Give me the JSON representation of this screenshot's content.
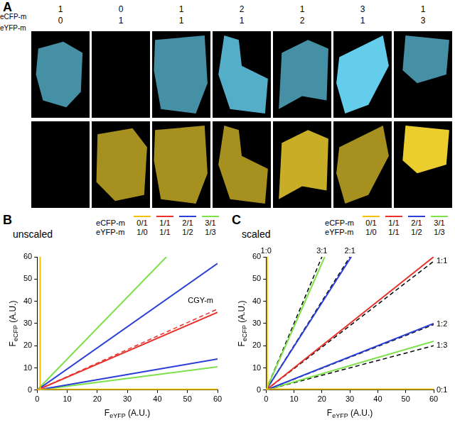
{
  "panel_a": {
    "label": "A",
    "row_labels": [
      "eCFP-m",
      "eYFP-m"
    ],
    "columns": [
      [
        1,
        0
      ],
      [
        0,
        1
      ],
      [
        1,
        1
      ],
      [
        2,
        1
      ],
      [
        1,
        2
      ],
      [
        3,
        1
      ],
      [
        1,
        3
      ]
    ]
  },
  "chart_data": [
    {
      "type": "line",
      "title": "B",
      "subtitle": "unscaled",
      "xlabel": {
        "text": "F",
        "subscript": "eYFP",
        "suffix": " (A.U.)"
      },
      "ylabel": {
        "text": "F",
        "subscript": "eCFP",
        "suffix": " (A.U.)"
      },
      "xlim": [
        0,
        60
      ],
      "ylim": [
        0,
        60
      ],
      "xticks": [
        0,
        10,
        20,
        30,
        40,
        50,
        60
      ],
      "yticks": [
        0,
        10,
        20,
        30,
        40,
        50,
        60
      ],
      "grid": false,
      "legend_table": {
        "row_labels": [
          "eCFP-m",
          "eYFP-m"
        ],
        "columns": [
          {
            "color": "#f2c200",
            "labels": [
              "0/1",
              "1/0"
            ]
          },
          {
            "color": "#e8312b",
            "labels": [
              "1/1",
              "1/1"
            ]
          },
          {
            "color": "#2b3fd6",
            "labels": [
              "2/1",
              "1/2"
            ]
          },
          {
            "color": "#7ee04a",
            "labels": [
              "3/1",
              "1/3"
            ]
          }
        ]
      },
      "series": [
        {
          "color": "#f2c200",
          "line_style": "solid",
          "x": [
            1,
            1
          ],
          "values": [
            0,
            60
          ]
        },
        {
          "color": "#f2c200",
          "line_style": "solid",
          "x": [
            0,
            60
          ],
          "values": [
            0.3,
            0.3
          ]
        },
        {
          "color": "#e8312b",
          "line_style": "solid",
          "x": [
            0,
            60
          ],
          "values": [
            0,
            35
          ]
        },
        {
          "name": "CGY-m",
          "color": "#e8312b",
          "line_style": "dashed",
          "x": [
            0,
            60
          ],
          "values": [
            0,
            36.5
          ]
        },
        {
          "color": "#2b3fd6",
          "line_style": "solid",
          "x": [
            0,
            60
          ],
          "values": [
            0,
            57
          ]
        },
        {
          "color": "#2b3fd6",
          "line_style": "solid",
          "x": [
            0,
            60
          ],
          "values": [
            0,
            14
          ]
        },
        {
          "color": "#7ee04a",
          "line_style": "solid",
          "x": [
            0,
            43
          ],
          "values": [
            0,
            60
          ]
        },
        {
          "color": "#7ee04a",
          "line_style": "solid",
          "x": [
            0,
            60
          ],
          "values": [
            0,
            10.5
          ]
        }
      ]
    },
    {
      "type": "line",
      "title": "C",
      "subtitle": "scaled",
      "xlabel": {
        "text": "F",
        "subscript": "eYFP",
        "suffix": " (A.U.)"
      },
      "ylabel": {
        "text": "F",
        "subscript": "eCFP",
        "suffix": " (A.U.)"
      },
      "xlim": [
        0,
        60
      ],
      "ylim": [
        0,
        60
      ],
      "xticks": [
        0,
        10,
        20,
        30,
        40,
        50,
        60
      ],
      "yticks": [
        0,
        10,
        20,
        30,
        40,
        50,
        60
      ],
      "grid": false,
      "legend_table": {
        "row_labels": [
          "eCFP-m",
          "eYFP-m"
        ],
        "columns": [
          {
            "color": "#f2c200",
            "labels": [
              "0/1",
              "1/0"
            ]
          },
          {
            "color": "#e8312b",
            "labels": [
              "1/1",
              "1/1"
            ]
          },
          {
            "color": "#2b3fd6",
            "labels": [
              "2/1",
              "1/2"
            ]
          },
          {
            "color": "#7ee04a",
            "labels": [
              "3/1",
              "1/3"
            ]
          }
        ]
      },
      "series": [
        {
          "color": "#f2c200",
          "line_style": "solid",
          "x": [
            0.4,
            0.4
          ],
          "values": [
            0,
            60
          ]
        },
        {
          "color": "#f2c200",
          "line_style": "solid",
          "x": [
            0,
            60
          ],
          "values": [
            0.4,
            0.4
          ]
        },
        {
          "color": "#7ee04a",
          "line_style": "solid",
          "x": [
            0,
            21
          ],
          "values": [
            0,
            60
          ]
        },
        {
          "color": "#2b3fd6",
          "line_style": "solid",
          "x": [
            0,
            30.5
          ],
          "values": [
            0,
            60
          ]
        },
        {
          "color": "#e8312b",
          "line_style": "solid",
          "x": [
            0,
            60
          ],
          "values": [
            0,
            60
          ]
        },
        {
          "color": "#2b3fd6",
          "line_style": "solid",
          "x": [
            0,
            60
          ],
          "values": [
            0,
            30
          ]
        },
        {
          "color": "#7ee04a",
          "line_style": "solid",
          "x": [
            0,
            60
          ],
          "values": [
            0,
            22
          ]
        },
        {
          "name": "1:0",
          "color": "#000000",
          "line_style": "dashed",
          "x": [
            0,
            0
          ],
          "values": [
            0,
            60
          ]
        },
        {
          "name": "3:1",
          "color": "#000000",
          "line_style": "dashed",
          "x": [
            0,
            20
          ],
          "values": [
            0,
            60
          ]
        },
        {
          "name": "2:1",
          "color": "#000000",
          "line_style": "dashed",
          "x": [
            0,
            30
          ],
          "values": [
            0,
            60
          ]
        },
        {
          "name": "1:1",
          "color": "#000000",
          "line_style": "dashed",
          "x": [
            0,
            60
          ],
          "values": [
            0,
            58
          ]
        },
        {
          "name": "1:2",
          "color": "#000000",
          "line_style": "dashed",
          "x": [
            0,
            60
          ],
          "values": [
            0,
            29.5
          ]
        },
        {
          "name": "1:3",
          "color": "#000000",
          "line_style": "dashed",
          "x": [
            0,
            60
          ],
          "values": [
            0,
            20
          ]
        },
        {
          "name": "0:1",
          "color": "#000000",
          "line_style": "dashed",
          "x": [
            0,
            60
          ],
          "values": [
            0,
            0
          ]
        }
      ]
    }
  ]
}
